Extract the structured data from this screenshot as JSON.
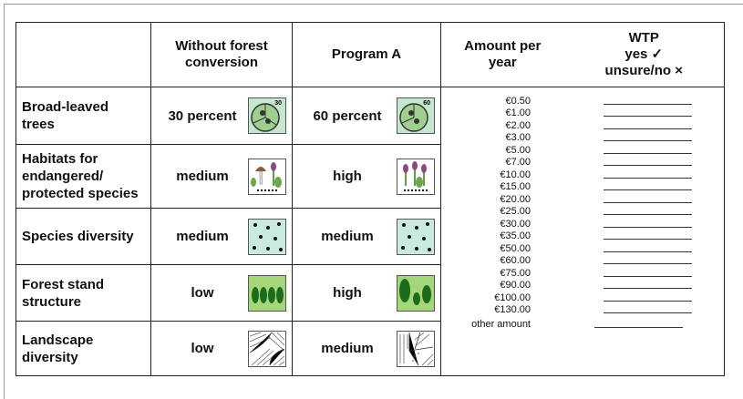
{
  "header": {
    "without": "Without forest conversion",
    "program_a": "Program A",
    "amount": "Amount per year",
    "wtp": "WTP",
    "yes": "yes ✓",
    "no": "unsure/no ×"
  },
  "rows": [
    {
      "label": "Broad-leaved trees",
      "without": "30 percent",
      "without_icon": "30",
      "program_a": "60 percent",
      "program_a_icon": "60"
    },
    {
      "label": "Habitats for endangered/ protected species",
      "without": "medium",
      "program_a": "high"
    },
    {
      "label": "Species diversity",
      "without": "medium",
      "program_a": "medium"
    },
    {
      "label": "Forest stand structure",
      "without": "low",
      "program_a": "high"
    },
    {
      "label": "Landscape diversity",
      "without": "low",
      "program_a": "medium"
    }
  ],
  "amounts": [
    "€0.50",
    "€1.00",
    "€2.00",
    "€3.00",
    "€5.00",
    "€7.00",
    "€10.00",
    "€15.00",
    "€20.00",
    "€25.00",
    "€30.00",
    "€35.00",
    "€50.00",
    "€60.00",
    "€75.00",
    "€90.00",
    "€100.00",
    "€130.00",
    "other amount"
  ]
}
